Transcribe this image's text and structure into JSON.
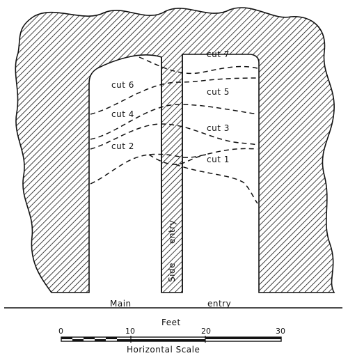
{
  "diagram": {
    "cuts": [
      "cut 7",
      "cut 6",
      "cut 5",
      "cut 4",
      "cut 3",
      "cut 2",
      "cut 1"
    ],
    "labels": {
      "main": "Main",
      "entry": "entry",
      "side": "Side",
      "side_entry": "entry"
    },
    "scale": {
      "title": "Feet",
      "caption": "Horizontal Scale",
      "ticks": [
        "0",
        "10",
        "20",
        "30"
      ]
    }
  }
}
